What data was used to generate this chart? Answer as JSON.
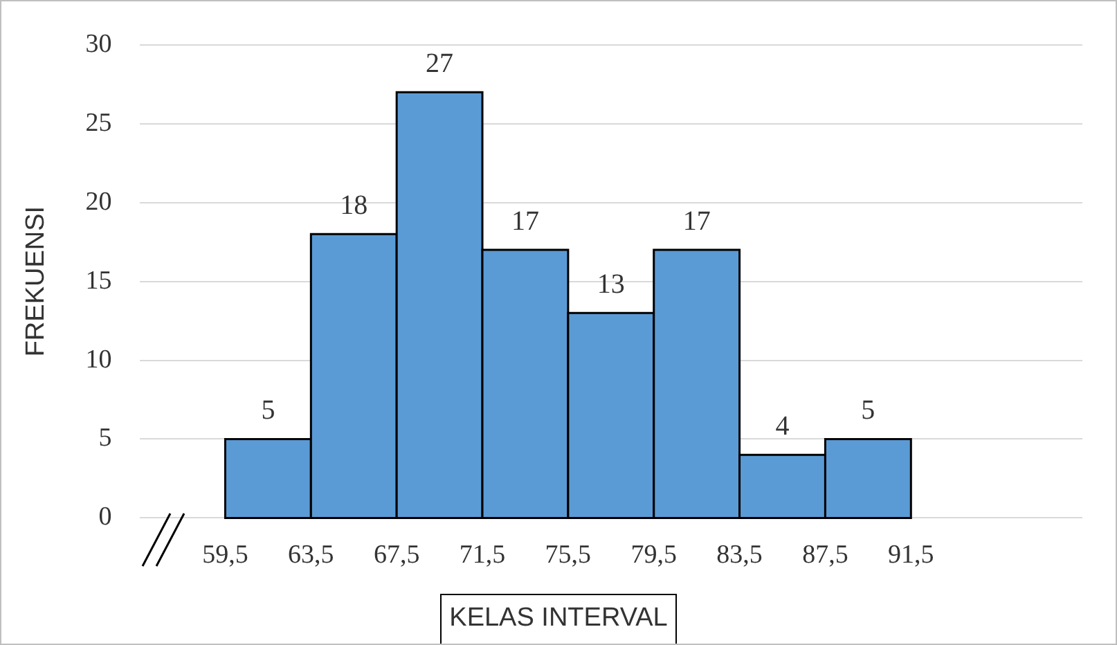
{
  "chart_data": {
    "type": "histogram",
    "xlabel": "KELAS INTERVAL",
    "ylabel": "FREKUENSI",
    "bins": [
      59.5,
      63.5,
      67.5,
      71.5,
      75.5,
      79.5,
      83.5,
      87.5,
      91.5
    ],
    "values": [
      5,
      18,
      27,
      17,
      13,
      17,
      4,
      5
    ],
    "color": "#5b9bd5",
    "xlim": [
      55.5,
      99.5
    ],
    "xticks": [
      {
        "value": 59.5,
        "label": "59,5"
      },
      {
        "value": 63.5,
        "label": "63,5"
      },
      {
        "value": 67.5,
        "label": "67,5"
      },
      {
        "value": 71.5,
        "label": "71,5"
      },
      {
        "value": 75.5,
        "label": "75,5"
      },
      {
        "value": 79.5,
        "label": "79,5"
      },
      {
        "value": 83.5,
        "label": "83,5"
      },
      {
        "value": 87.5,
        "label": "87,5"
      },
      {
        "value": 91.5,
        "label": "91,5"
      }
    ],
    "ylim": [
      0,
      30
    ],
    "yticks": [
      0,
      5,
      10,
      15,
      20,
      25,
      30
    ],
    "grid": "y",
    "data_labels": true
  }
}
